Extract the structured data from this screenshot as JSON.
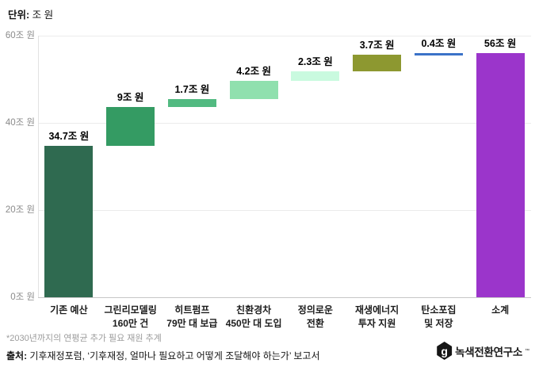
{
  "unit_label": {
    "prefix": "단위:",
    "value": "조 원"
  },
  "chart_data": {
    "type": "bar",
    "subtype": "waterfall",
    "title": "",
    "unit": "조 원",
    "ylim": [
      0,
      60
    ],
    "grid": true,
    "yticks": [
      {
        "label": "0조 원",
        "value": 0
      },
      {
        "label": "20조 원",
        "value": 20
      },
      {
        "label": "40조 원",
        "value": 40
      },
      {
        "label": "60조 원",
        "value": 60
      }
    ],
    "bars": [
      {
        "category_lines": [
          "기존 예산"
        ],
        "label": "34.7조 원",
        "start": 0,
        "end": 34.7,
        "value": 34.7,
        "color": "#2F6A50"
      },
      {
        "category_lines": [
          "그린리모델링",
          "160만 건"
        ],
        "label": "9조 원",
        "start": 34.7,
        "end": 43.7,
        "value": 9,
        "color": "#349B63"
      },
      {
        "category_lines": [
          "히트펌프",
          "79만 대 보급"
        ],
        "label": "1.7조 원",
        "start": 43.7,
        "end": 45.4,
        "value": 1.7,
        "color": "#52BA81"
      },
      {
        "category_lines": [
          "친환경차",
          "450만 대 도입"
        ],
        "label": "4.2조 원",
        "start": 45.4,
        "end": 49.6,
        "value": 4.2,
        "color": "#90E0AE"
      },
      {
        "category_lines": [
          "정의로운",
          "전환"
        ],
        "label": "2.3조 원",
        "start": 49.6,
        "end": 51.9,
        "value": 2.3,
        "color": "#C9FADF"
      },
      {
        "category_lines": [
          "재생에너지",
          "투자 지원"
        ],
        "label": "3.7조 원",
        "start": 51.9,
        "end": 55.6,
        "value": 3.7,
        "color": "#8D9830"
      },
      {
        "category_lines": [
          "탄소포집",
          "및 저장"
        ],
        "label": "0.4조 원",
        "start": 55.6,
        "end": 56.0,
        "value": 0.4,
        "color": "#3B72C8"
      },
      {
        "category_lines": [
          "소계"
        ],
        "label": "56조 원",
        "start": 0,
        "end": 56.0,
        "value": 56,
        "color": "#9B35CB"
      }
    ]
  },
  "footnote": "*2030년까지의 연평균 추가 필요 재원 추계",
  "source": {
    "prefix": "출처:",
    "text": " 기후재정포럼, ‘기후재정, 얼마나 필요하고 어떻게 조달해야 하는가’ 보고서"
  },
  "logo": {
    "glyph": "g",
    "text": "녹색전환연구소",
    "superscript": "™"
  }
}
